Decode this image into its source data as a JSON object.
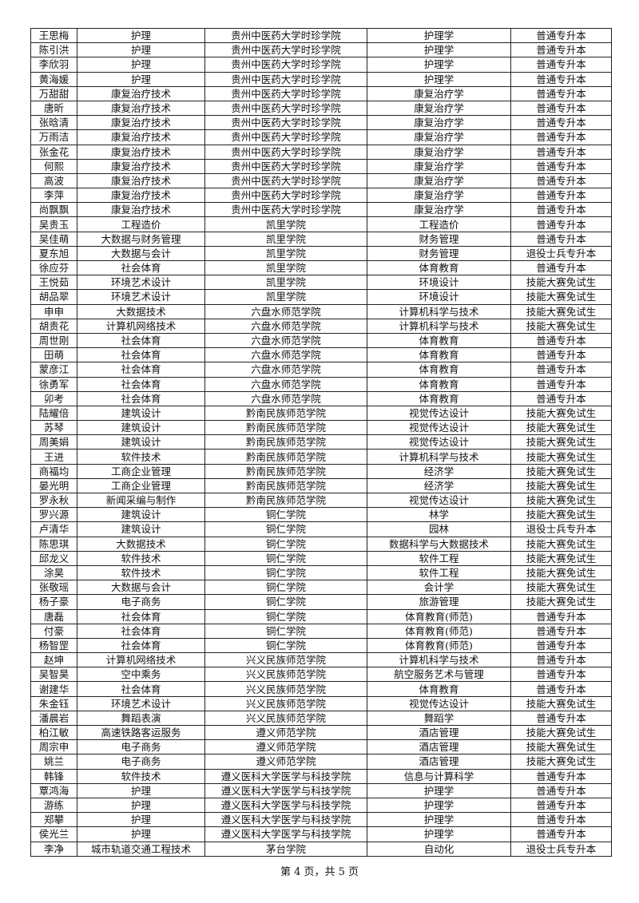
{
  "rows": [
    [
      "王思梅",
      "护理",
      "贵州中医药大学时珍学院",
      "护理学",
      "普通专升本"
    ],
    [
      "陈引洪",
      "护理",
      "贵州中医药大学时珍学院",
      "护理学",
      "普通专升本"
    ],
    [
      "李欣羽",
      "护理",
      "贵州中医药大学时珍学院",
      "护理学",
      "普通专升本"
    ],
    [
      "黄海媛",
      "护理",
      "贵州中医药大学时珍学院",
      "护理学",
      "普通专升本"
    ],
    [
      "万甜甜",
      "康复治疗技术",
      "贵州中医药大学时珍学院",
      "康复治疗学",
      "普通专升本"
    ],
    [
      "唐昕",
      "康复治疗技术",
      "贵州中医药大学时珍学院",
      "康复治疗学",
      "普通专升本"
    ],
    [
      "张晗清",
      "康复治疗技术",
      "贵州中医药大学时珍学院",
      "康复治疗学",
      "普通专升本"
    ],
    [
      "万雨洁",
      "康复治疗技术",
      "贵州中医药大学时珍学院",
      "康复治疗学",
      "普通专升本"
    ],
    [
      "张金花",
      "康复治疗技术",
      "贵州中医药大学时珍学院",
      "康复治疗学",
      "普通专升本"
    ],
    [
      "何熙",
      "康复治疗技术",
      "贵州中医药大学时珍学院",
      "康复治疗学",
      "普通专升本"
    ],
    [
      "高波",
      "康复治疗技术",
      "贵州中医药大学时珍学院",
      "康复治疗学",
      "普通专升本"
    ],
    [
      "李萍",
      "康复治疗技术",
      "贵州中医药大学时珍学院",
      "康复治疗学",
      "普通专升本"
    ],
    [
      "尚飘飘",
      "康复治疗技术",
      "贵州中医药大学时珍学院",
      "康复治疗学",
      "普通专升本"
    ],
    [
      "吴贵玉",
      "工程造价",
      "凯里学院",
      "工程造价",
      "普通专升本"
    ],
    [
      "吴佳萌",
      "大数据与财务管理",
      "凯里学院",
      "财务管理",
      "普通专升本"
    ],
    [
      "夏东旭",
      "大数据与会计",
      "凯里学院",
      "财务管理",
      "退役士兵专升本"
    ],
    [
      "徐应芬",
      "社会体育",
      "凯里学院",
      "体育教育",
      "普通专升本"
    ],
    [
      "王悦茹",
      "环境艺术设计",
      "凯里学院",
      "环境设计",
      "技能大赛免试生"
    ],
    [
      "胡品翠",
      "环境艺术设计",
      "凯里学院",
      "环境设计",
      "技能大赛免试生"
    ],
    [
      "申申",
      "大数据技术",
      "六盘水师范学院",
      "计算机科学与技术",
      "技能大赛免试生"
    ],
    [
      "胡贵花",
      "计算机网络技术",
      "六盘水师范学院",
      "计算机科学与技术",
      "技能大赛免试生"
    ],
    [
      "周世刚",
      "社会体育",
      "六盘水师范学院",
      "体育教育",
      "普通专升本"
    ],
    [
      "田萌",
      "社会体育",
      "六盘水师范学院",
      "体育教育",
      "普通专升本"
    ],
    [
      "蒙彦江",
      "社会体育",
      "六盘水师范学院",
      "体育教育",
      "普通专升本"
    ],
    [
      "徐勇军",
      "社会体育",
      "六盘水师范学院",
      "体育教育",
      "普通专升本"
    ],
    [
      "卯考",
      "社会体育",
      "六盘水师范学院",
      "体育教育",
      "普通专升本"
    ],
    [
      "陆耀倍",
      "建筑设计",
      "黔南民族师范学院",
      "视觉传达设计",
      "技能大赛免试生"
    ],
    [
      "苏琴",
      "建筑设计",
      "黔南民族师范学院",
      "视觉传达设计",
      "技能大赛免试生"
    ],
    [
      "周美娟",
      "建筑设计",
      "黔南民族师范学院",
      "视觉传达设计",
      "技能大赛免试生"
    ],
    [
      "王进",
      "软件技术",
      "黔南民族师范学院",
      "计算机科学与技术",
      "技能大赛免试生"
    ],
    [
      "商福均",
      "工商企业管理",
      "黔南民族师范学院",
      "经济学",
      "技能大赛免试生"
    ],
    [
      "晏光明",
      "工商企业管理",
      "黔南民族师范学院",
      "经济学",
      "技能大赛免试生"
    ],
    [
      "罗永秋",
      "新闻采编与制作",
      "黔南民族师范学院",
      "视觉传达设计",
      "技能大赛免试生"
    ],
    [
      "罗兴源",
      "建筑设计",
      "铜仁学院",
      "林学",
      "技能大赛免试生"
    ],
    [
      "卢清华",
      "建筑设计",
      "铜仁学院",
      "园林",
      "退役士兵专升本"
    ],
    [
      "陈思琪",
      "大数据技术",
      "铜仁学院",
      "数据科学与大数据技术",
      "技能大赛免试生"
    ],
    [
      "邱龙义",
      "软件技术",
      "铜仁学院",
      "软件工程",
      "技能大赛免试生"
    ],
    [
      "涂昊",
      "软件技术",
      "铜仁学院",
      "软件工程",
      "技能大赛免试生"
    ],
    [
      "张敬瑶",
      "大数据与会计",
      "铜仁学院",
      "会计学",
      "技能大赛免试生"
    ],
    [
      "杨子豪",
      "电子商务",
      "铜仁学院",
      "旅游管理",
      "技能大赛免试生"
    ],
    [
      "唐磊",
      "社会体育",
      "铜仁学院",
      "体育教育(师范)",
      "普通专升本"
    ],
    [
      "付豪",
      "社会体育",
      "铜仁学院",
      "体育教育(师范)",
      "普通专升本"
    ],
    [
      "杨智罡",
      "社会体育",
      "铜仁学院",
      "体育教育(师范)",
      "普通专升本"
    ],
    [
      "赵坤",
      "计算机网络技术",
      "兴义民族师范学院",
      "计算机科学与技术",
      "普通专升本"
    ],
    [
      "吴智昊",
      "空中乘务",
      "兴义民族师范学院",
      "航空服务艺术与管理",
      "普通专升本"
    ],
    [
      "谢建华",
      "社会体育",
      "兴义民族师范学院",
      "体育教育",
      "普通专升本"
    ],
    [
      "朱金钰",
      "环境艺术设计",
      "兴义民族师范学院",
      "视觉传达设计",
      "技能大赛免试生"
    ],
    [
      "潘晨岩",
      "舞蹈表演",
      "兴义民族师范学院",
      "舞蹈学",
      "普通专升本"
    ],
    [
      "柏江敏",
      "高速铁路客运服务",
      "遵义师范学院",
      "酒店管理",
      "技能大赛免试生"
    ],
    [
      "周宗申",
      "电子商务",
      "遵义师范学院",
      "酒店管理",
      "技能大赛免试生"
    ],
    [
      "姚兰",
      "电子商务",
      "遵义师范学院",
      "酒店管理",
      "技能大赛免试生"
    ],
    [
      "韩锋",
      "软件技术",
      "遵义医科大学医学与科技学院",
      "信息与计算科学",
      "普通专升本"
    ],
    [
      "覃鸿海",
      "护理",
      "遵义医科大学医学与科技学院",
      "护理学",
      "普通专升本"
    ],
    [
      "游练",
      "护理",
      "遵义医科大学医学与科技学院",
      "护理学",
      "普通专升本"
    ],
    [
      "郑攀",
      "护理",
      "遵义医科大学医学与科技学院",
      "护理学",
      "普通专升本"
    ],
    [
      "侯光兰",
      "护理",
      "遵义医科大学医学与科技学院",
      "护理学",
      "普通专升本"
    ],
    [
      "李净",
      "城市轨道交通工程技术",
      "茅台学院",
      "自动化",
      "退役士兵专升本"
    ]
  ],
  "footer": "第 4 页，共 5 页"
}
